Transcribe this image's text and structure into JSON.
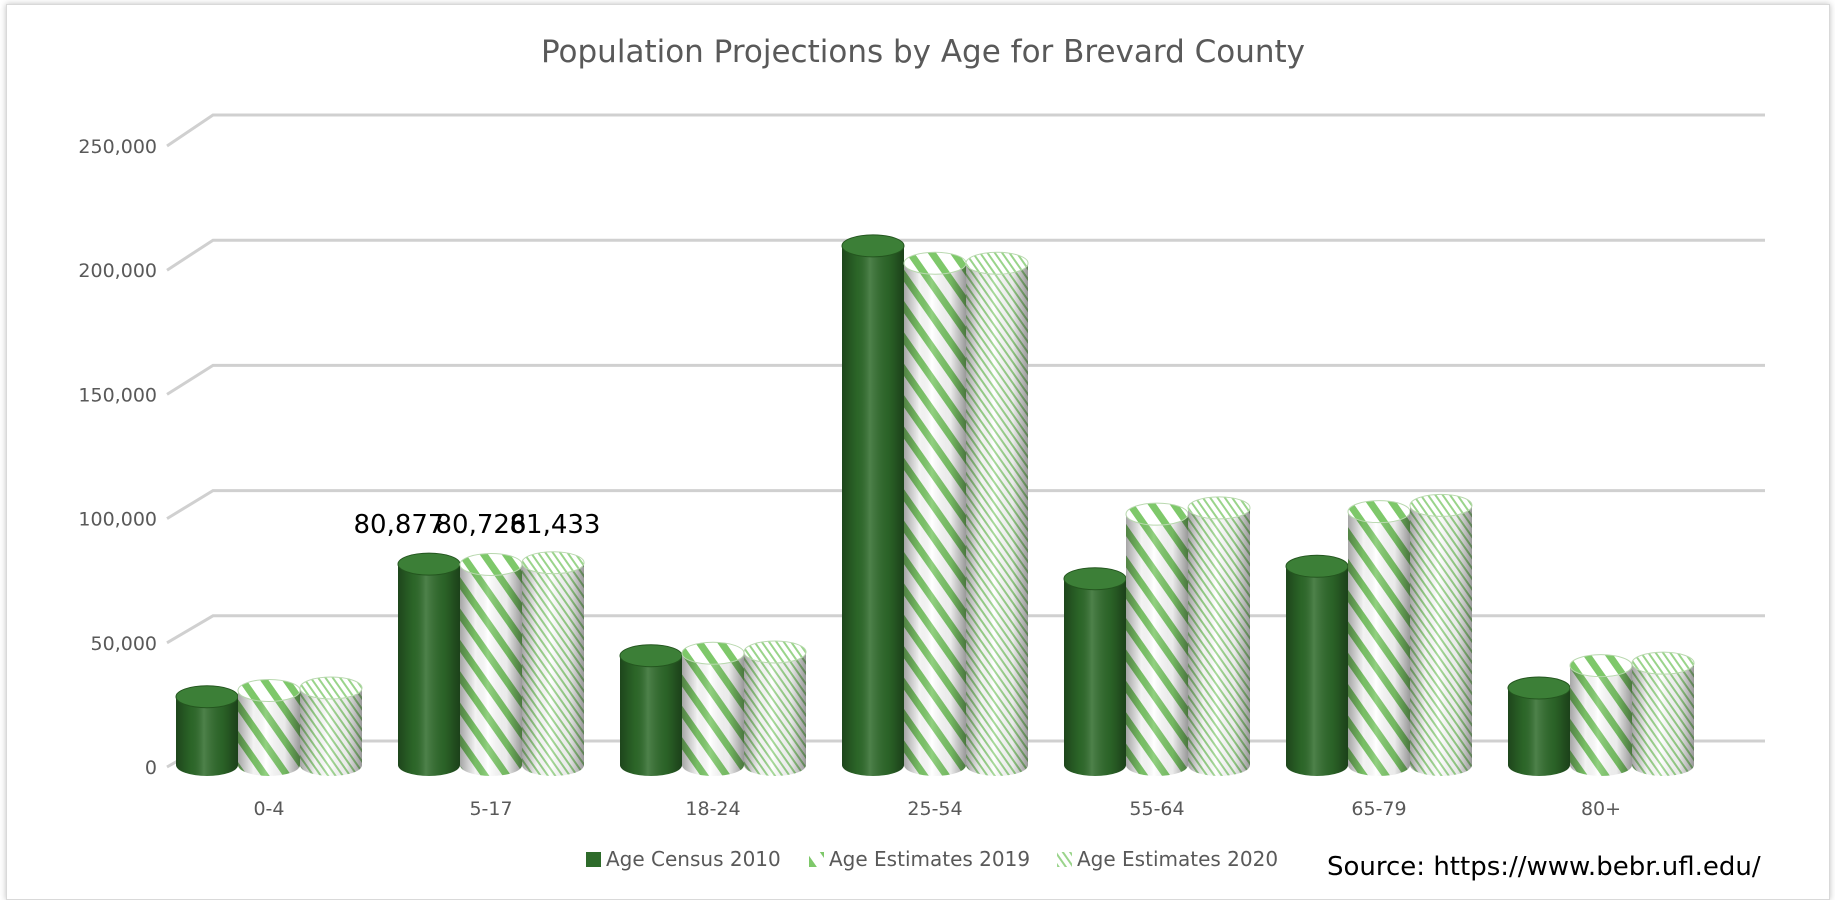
{
  "chart_data": {
    "type": "bar",
    "style": "3d-cylinder",
    "title": "Population Projections by Age for Brevard County",
    "categories": [
      "0-4",
      "5-17",
      "18-24",
      "25-54",
      "55-64",
      "65-79",
      "80+"
    ],
    "series": [
      {
        "name": "Age Census 2010",
        "pattern": "solid",
        "color": "#2e6b2a",
        "values": [
          27500,
          80877,
          44000,
          209000,
          75000,
          80000,
          31000
        ]
      },
      {
        "name": "Age Estimates 2019",
        "pattern": "wide-diagonal",
        "color": "#7ec86a",
        "values": [
          30000,
          80726,
          45000,
          202000,
          101000,
          102000,
          40000
        ]
      },
      {
        "name": "Age Estimates 2020",
        "pattern": "fine-diagonal",
        "color": "#8fce7e",
        "values": [
          31000,
          81433,
          45500,
          202000,
          103500,
          104500,
          41000
        ]
      }
    ],
    "data_labels": [
      {
        "category": "5-17",
        "series": "Age Census 2010",
        "text": "80,877"
      },
      {
        "category": "5-17",
        "series": "Age Estimates 2019",
        "text": "80,726"
      },
      {
        "category": "5-17",
        "series": "Age Estimates 2020",
        "text": "81,433"
      }
    ],
    "ylim": [
      0,
      250000
    ],
    "yticks": [
      0,
      50000,
      100000,
      150000,
      200000,
      250000
    ],
    "ytick_labels": [
      "0",
      "50,000",
      "100,000",
      "150,000",
      "200,000",
      "250,000"
    ],
    "grid": true,
    "legend_position": "bottom",
    "source_note": "Source: https://www.bebr.ufl.edu/",
    "xlabel": "",
    "ylabel": ""
  }
}
